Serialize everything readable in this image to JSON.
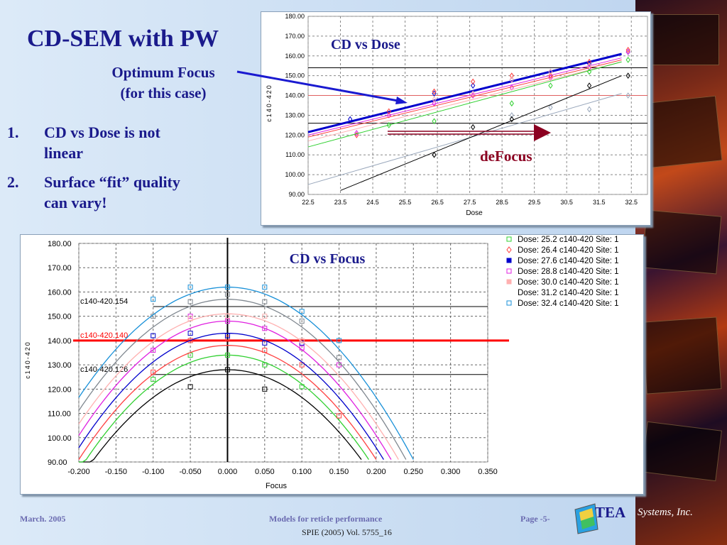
{
  "slide": {
    "title": "CD-SEM with PW",
    "callout": [
      "Optimum Focus",
      "(for this case)"
    ],
    "bullets": [
      {
        "num": "1.",
        "lines": [
          "CD vs Dose is not",
          "linear"
        ]
      },
      {
        "num": "2.",
        "lines": [
          "Surface “fit” quality",
          "can vary!"
        ]
      }
    ],
    "defocus_label": "deFocus",
    "footer_left": "March. 2005",
    "footer_center": "Models for reticle performance",
    "footer_page": "Page -5-",
    "citation": "SPIE (2005) Vol. 5755_16",
    "logo_text": "TEA",
    "logo_sub": "Systems, Inc.",
    "colors": {
      "title": "#1a1a8c",
      "arrow": "#1a1ad0",
      "defocus": "#8b0020"
    }
  },
  "chart_data": [
    {
      "type": "line",
      "title": "CD vs Dose",
      "xlabel": "Dose",
      "ylabel": "c140-420",
      "xlim": [
        22.5,
        33.0
      ],
      "ylim": [
        90,
        180
      ],
      "xticks": [
        "22.5",
        "23.5",
        "24.5",
        "25.5",
        "26.5",
        "27.5",
        "28.5",
        "29.5",
        "30.5",
        "31.5",
        "32.5"
      ],
      "yticks": [
        "180.00",
        "170.00",
        "160.00",
        "150.00",
        "140.00",
        "130.00",
        "120.00",
        "110.00",
        "100.00",
        "90.00"
      ],
      "reference_lines": [
        {
          "y": 154,
          "color": "#000000"
        },
        {
          "y": 140,
          "color": "#e06060"
        },
        {
          "y": 126,
          "color": "#000000"
        }
      ],
      "series": [
        {
          "color": "#0000cc",
          "bold": true,
          "fit": [
            [
              22.5,
              121.5
            ],
            [
              32.2,
              161
            ]
          ],
          "points": [
            [
              23.8,
              128
            ],
            [
              26.4,
              141
            ],
            [
              27.6,
              145
            ],
            [
              28.8,
              148
            ],
            [
              30.0,
              152
            ],
            [
              31.2,
              156
            ],
            [
              32.4,
              162
            ]
          ]
        },
        {
          "color": "#e020e0",
          "fit": [
            [
              22.5,
              120
            ],
            [
              32.2,
              159
            ]
          ],
          "points": [
            [
              24.0,
              121
            ],
            [
              25.0,
              130
            ],
            [
              26.4,
              136
            ],
            [
              27.6,
              140
            ],
            [
              28.8,
              144
            ],
            [
              30.0,
              149
            ],
            [
              31.2,
              154
            ],
            [
              32.4,
              162
            ]
          ]
        },
        {
          "color": "#ff4040",
          "fit": [
            [
              22.5,
              119
            ],
            [
              32.2,
              158
            ]
          ],
          "points": [
            [
              24.0,
              120
            ],
            [
              25.0,
              132
            ],
            [
              26.4,
              142
            ],
            [
              27.6,
              147
            ],
            [
              28.8,
              150
            ],
            [
              30.0,
              150
            ],
            [
              31.2,
              157
            ],
            [
              32.4,
              163
            ]
          ]
        },
        {
          "color": "#ffb0b0",
          "fit": [
            [
              22.5,
              117
            ],
            [
              32.2,
              157
            ]
          ],
          "points": [
            [
              26.4,
              138
            ],
            [
              27.6,
              141
            ],
            [
              28.8,
              148
            ],
            [
              30.0,
              152
            ],
            [
              31.2,
              155
            ]
          ]
        },
        {
          "color": "#30d030",
          "fit": [
            [
              22.5,
              114
            ],
            [
              32.2,
              157
            ]
          ],
          "points": [
            [
              25.0,
              125
            ],
            [
              26.4,
              127
            ],
            [
              28.8,
              136
            ],
            [
              30.0,
              145
            ],
            [
              31.2,
              152
            ],
            [
              32.4,
              158
            ]
          ]
        },
        {
          "color": "#9aa8bc",
          "fit": [
            [
              22.5,
              95
            ],
            [
              32.2,
              141
            ]
          ],
          "points": [
            [
              28.8,
              130
            ],
            [
              30.0,
              134
            ],
            [
              31.2,
              133
            ],
            [
              32.4,
              140
            ]
          ]
        },
        {
          "color": "#000000",
          "fit": [
            [
              23.5,
              92
            ],
            [
              32.2,
              150
            ]
          ],
          "points": [
            [
              26.4,
              110
            ],
            [
              27.6,
              124
            ],
            [
              28.8,
              128
            ],
            [
              31.2,
              145
            ],
            [
              32.4,
              150
            ]
          ]
        }
      ]
    },
    {
      "type": "line",
      "title": "CD vs Focus",
      "xlabel": "Focus",
      "ylabel": "c140-420",
      "xlim": [
        -0.2,
        0.35
      ],
      "ylim": [
        90,
        180
      ],
      "xticks": [
        "-0.200",
        "-0.150",
        "-0.100",
        "-0.050",
        "0.000",
        "0.050",
        "0.100",
        "0.150",
        "0.200",
        "0.250",
        "0.300",
        "0.350"
      ],
      "yticks": [
        "180.00",
        "170.00",
        "160.00",
        "150.00",
        "140.00",
        "130.00",
        "120.00",
        "110.00",
        "100.00",
        "90.00"
      ],
      "reference_lines": [
        {
          "y": 154,
          "label": "c140-420.154",
          "color": "#000000"
        },
        {
          "y": 140,
          "label": "c140-420.140",
          "color": "#ff0000",
          "bold": true
        },
        {
          "y": 126,
          "label": "c140-420.126",
          "color": "#000000"
        }
      ],
      "legend": {
        "position": "right",
        "entries": [
          {
            "label": "Dose: 25.2 c140-420 Site: 1",
            "color": "#30d030",
            "marker": "square"
          },
          {
            "label": "Dose: 26.4 c140-420 Site: 1",
            "color": "#ff4040",
            "marker": "diamond"
          },
          {
            "label": "Dose: 27.6 c140-420 Site: 1",
            "color": "#0000cc",
            "marker": "filled-square"
          },
          {
            "label": "Dose: 28.8 c140-420 Site: 1",
            "color": "#e020e0",
            "marker": "square"
          },
          {
            "label": "Dose: 30.0 c140-420 Site: 1",
            "color": "#ffb0b0",
            "marker": "filled-square"
          },
          {
            "label": "Dose: 31.2 c140-420 Site: 1",
            "color": "#ffffff",
            "marker": "none"
          },
          {
            "label": "Dose: 32.4 c140-420 Site: 1",
            "color": "#1890d8",
            "marker": "square"
          }
        ]
      },
      "series": [
        {
          "color": "#000000",
          "peak": 128,
          "end": 0.18,
          "points": [
            [
              -0.05,
              121
            ],
            [
              0.0,
              128
            ],
            [
              0.05,
              120
            ]
          ]
        },
        {
          "color": "#30d030",
          "peak": 134,
          "end": 0.19,
          "points": [
            [
              -0.1,
              124
            ],
            [
              -0.05,
              134
            ],
            [
              0.0,
              134
            ],
            [
              0.05,
              130
            ],
            [
              0.1,
              121
            ]
          ]
        },
        {
          "color": "#ff4040",
          "peak": 138,
          "end": 0.2,
          "points": [
            [
              -0.1,
              127
            ],
            [
              -0.05,
              140
            ],
            [
              0.0,
              141
            ],
            [
              0.05,
              136
            ],
            [
              0.1,
              130
            ],
            [
              0.15,
              109
            ]
          ]
        },
        {
          "color": "#0000cc",
          "peak": 143,
          "end": 0.21,
          "points": [
            [
              -0.1,
              142
            ],
            [
              -0.05,
              143
            ],
            [
              0.0,
              142
            ],
            [
              0.05,
              139
            ],
            [
              0.1,
              139
            ]
          ]
        },
        {
          "color": "#e020e0",
          "peak": 148,
          "end": 0.22,
          "points": [
            [
              -0.1,
              136
            ],
            [
              -0.05,
              150
            ],
            [
              0.0,
              148
            ],
            [
              0.05,
              145
            ],
            [
              0.1,
              137
            ],
            [
              0.15,
              130
            ]
          ]
        },
        {
          "color": "#ffb0b0",
          "peak": 151,
          "end": 0.23,
          "points": [
            [
              -0.05,
              149
            ],
            [
              0.0,
              150
            ],
            [
              0.05,
              150
            ],
            [
              0.1,
              140
            ]
          ]
        },
        {
          "color": "#808890",
          "peak": 157,
          "end": 0.24,
          "points": [
            [
              -0.1,
              150
            ],
            [
              -0.05,
              156
            ],
            [
              0.0,
              159
            ],
            [
              0.05,
              156
            ],
            [
              0.1,
              148
            ],
            [
              0.15,
              133
            ]
          ]
        },
        {
          "color": "#1890d8",
          "peak": 162,
          "end": 0.25,
          "points": [
            [
              -0.1,
              157
            ],
            [
              -0.05,
              162
            ],
            [
              0.0,
              162
            ],
            [
              0.05,
              162
            ],
            [
              0.1,
              152
            ],
            [
              0.15,
              140
            ]
          ]
        }
      ]
    }
  ]
}
